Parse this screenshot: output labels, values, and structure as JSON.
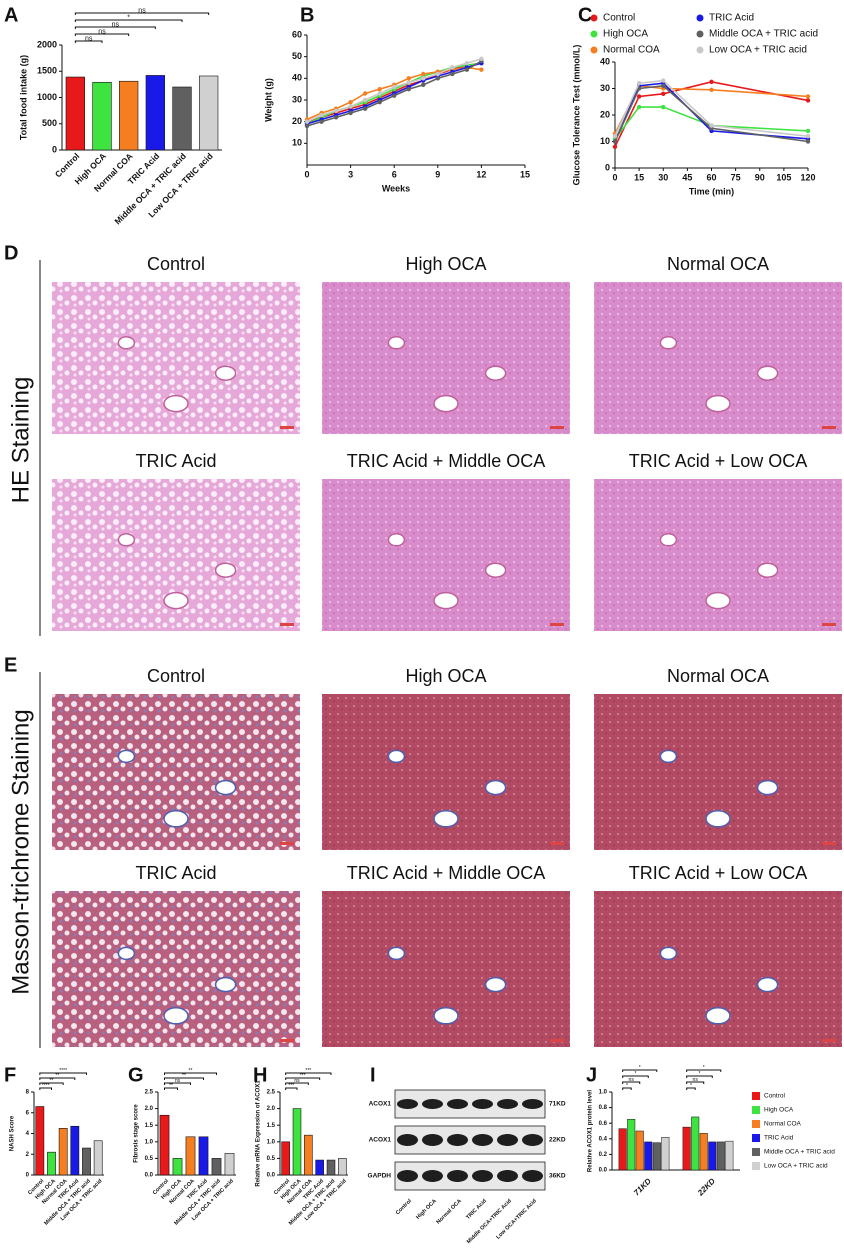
{
  "chart_data": [
    {
      "panel": "A",
      "type": "bar",
      "ylabel": "Total food intake (g)",
      "categories": [
        "Control",
        "High OCA",
        "Normal COA",
        "TRIC Acid",
        "Middle OCA + TRIC acid",
        "Low OCA + TRIC acid"
      ],
      "values": [
        1390,
        1290,
        1310,
        1420,
        1200,
        1410
      ],
      "colors": [
        "#e8191b",
        "#3fe33f",
        "#f57f20",
        "#1a1ae8",
        "#606060",
        "#d0d0d0"
      ],
      "ylim": [
        0,
        2000
      ],
      "yticks": [
        0,
        500,
        1000,
        1500,
        2000
      ],
      "annotations": [
        "ns",
        "ns",
        "ns",
        "*",
        "ns"
      ]
    },
    {
      "panel": "B",
      "type": "line",
      "xlabel": "Weeks",
      "ylabel": "Weight (g)",
      "x": [
        0,
        1,
        2,
        3,
        4,
        5,
        6,
        7,
        8,
        9,
        10,
        11,
        12
      ],
      "xlim": [
        0,
        15
      ],
      "xticks": [
        0,
        3,
        6,
        9,
        12,
        15
      ],
      "ylim": [
        0,
        60
      ],
      "yticks": [
        10,
        20,
        30,
        40,
        50,
        60
      ],
      "series": [
        {
          "color": "#e8191b",
          "values": [
            20,
            22,
            24,
            26,
            28,
            31,
            34,
            37,
            39,
            42,
            44,
            46,
            47
          ]
        },
        {
          "color": "#3fe33f",
          "values": [
            19,
            22,
            25,
            27,
            29,
            32,
            35,
            38,
            41,
            43,
            45,
            46,
            47
          ]
        },
        {
          "color": "#f57f20",
          "values": [
            21,
            24,
            26,
            29,
            33,
            35,
            37,
            40,
            42,
            43,
            44,
            45,
            44
          ]
        },
        {
          "color": "#1a1ae8",
          "values": [
            19,
            21,
            23,
            25,
            27,
            30,
            33,
            36,
            39,
            41,
            43,
            45,
            47
          ]
        },
        {
          "color": "#606060",
          "values": [
            18,
            20,
            22,
            24,
            26,
            29,
            32,
            35,
            37,
            40,
            42,
            44,
            48
          ]
        },
        {
          "color": "#c8c8c8",
          "values": [
            20,
            23,
            25,
            27,
            30,
            33,
            36,
            38,
            40,
            42,
            45,
            47,
            49
          ]
        }
      ]
    },
    {
      "panel": "C",
      "type": "line",
      "xlabel": "Time (min)",
      "ylabel": "Glucose Tolerance Test (mmol/L)",
      "x": [
        0,
        15,
        30,
        60,
        120
      ],
      "xlim": [
        0,
        120
      ],
      "xticks": [
        0,
        15,
        30,
        45,
        60,
        75,
        90,
        105,
        120
      ],
      "ylim": [
        0,
        40
      ],
      "yticks": [
        0,
        10,
        20,
        30,
        40
      ],
      "series": [
        {
          "name": "Control",
          "color": "#e8191b",
          "values": [
            8,
            27,
            28,
            32.5,
            25.5
          ]
        },
        {
          "name": "High OCA",
          "color": "#3fe33f",
          "values": [
            11,
            23,
            23,
            16,
            14
          ]
        },
        {
          "name": "Normal COA",
          "color": "#f57f20",
          "values": [
            13,
            31,
            30,
            29.5,
            27
          ]
        },
        {
          "name": "TRIC Acid",
          "color": "#1a1ae8",
          "values": [
            10,
            31,
            32,
            14,
            11
          ]
        },
        {
          "name": "Middle OCA + TRIC acid",
          "color": "#606060",
          "values": [
            10,
            30,
            31,
            15,
            10
          ]
        },
        {
          "name": "Low OCA + TRIC acid",
          "color": "#c8c8c8",
          "values": [
            12,
            32,
            33,
            16,
            12
          ]
        }
      ]
    },
    {
      "panel": "F",
      "type": "bar",
      "ylabel": "NASH Score",
      "categories": [
        "Control",
        "High OCA",
        "Normal COA",
        "TRIC Acid",
        "Middle OCA + TRIC acid",
        "Low OCA + TRIC acid"
      ],
      "values": [
        6.6,
        2.2,
        4.5,
        4.7,
        2.6,
        3.3
      ],
      "colors": [
        "#e8191b",
        "#3fe33f",
        "#f57f20",
        "#1a1ae8",
        "#606060",
        "#d0d0d0"
      ],
      "ylim": [
        0,
        8
      ],
      "yticks": [
        0,
        2,
        4,
        6,
        8
      ],
      "annotations": [
        "****",
        "**",
        "**",
        "****"
      ]
    },
    {
      "panel": "G",
      "type": "bar",
      "ylabel": "Fibrosis stage score",
      "categories": [
        "Control",
        "High OCA",
        "Normal COA",
        "TRIC Acid",
        "Middle OCA + TRIC acid",
        "Low OCA + TRIC acid"
      ],
      "values": [
        1.8,
        0.5,
        1.15,
        1.15,
        0.5,
        0.65
      ],
      "colors": [
        "#e8191b",
        "#3fe33f",
        "#f57f20",
        "#1a1ae8",
        "#606060",
        "#d0d0d0"
      ],
      "ylim": [
        0,
        2.5
      ],
      "yticks": [
        {
          "value": 0,
          "label": "0.0"
        },
        {
          "value": 0.5,
          "label": "0.5"
        },
        {
          "value": 1,
          "label": "1.0"
        },
        {
          "value": 1.5,
          "label": "1.5"
        },
        {
          "value": 2,
          "label": "2.0"
        },
        {
          "value": 2.5,
          "label": "2.5"
        }
      ],
      "annotations": [
        "**",
        "ns",
        "**",
        "**"
      ]
    },
    {
      "panel": "H",
      "type": "bar",
      "ylabel": "Relative mRNA Expression of ACOX1",
      "categories": [
        "Control",
        "High OCA",
        "Normal COA",
        "TRIC Acid",
        "Middle OCA + TRIC acid",
        "Low OCA + TRIC acid"
      ],
      "values": [
        1.0,
        2.0,
        1.2,
        0.45,
        0.45,
        0.5
      ],
      "colors": [
        "#e8191b",
        "#3fe33f",
        "#f57f20",
        "#1a1ae8",
        "#606060",
        "#d0d0d0"
      ],
      "ylim": [
        0,
        2.5
      ],
      "yticks": [
        {
          "value": 0,
          "label": "0.0"
        },
        {
          "value": 0.5,
          "label": "0.5"
        },
        {
          "value": 1,
          "label": "1.0"
        },
        {
          "value": 1.5,
          "label": "1.5"
        },
        {
          "value": 2,
          "label": "2.0"
        },
        {
          "value": 2.5,
          "label": "2.5"
        }
      ],
      "annotations": [
        "***",
        "ns",
        "***",
        "***"
      ]
    },
    {
      "panel": "J",
      "type": "grouped-bar",
      "ylabel": "Relative ACOX1 protein level",
      "categories": [
        "71KD",
        "22KD"
      ],
      "ylim": [
        0,
        1.0
      ],
      "yticks": [
        {
          "value": 0,
          "label": "0.0"
        },
        {
          "value": 0.2,
          "label": "0.2"
        },
        {
          "value": 0.4,
          "label": "0.4"
        },
        {
          "value": 0.6,
          "label": "0.6"
        },
        {
          "value": 0.8,
          "label": "0.8"
        },
        {
          "value": 1.0,
          "label": "1.0"
        }
      ],
      "series": [
        {
          "name": "Control",
          "color": "#e8191b",
          "values": [
            0.53,
            0.55
          ]
        },
        {
          "name": "High OCA",
          "color": "#3fe33f",
          "values": [
            0.65,
            0.68
          ]
        },
        {
          "name": "Normal COA",
          "color": "#f57f20",
          "values": [
            0.5,
            0.47
          ]
        },
        {
          "name": "TRIC Acid",
          "color": "#1a1ae8",
          "values": [
            0.36,
            0.36
          ]
        },
        {
          "name": "Middle OCA + TRIC acid",
          "color": "#606060",
          "values": [
            0.35,
            0.36
          ]
        },
        {
          "name": "Low OCA + TRIC acid",
          "color": "#d0d0d0",
          "values": [
            0.42,
            0.37
          ]
        }
      ],
      "annotations": [
        [
          "*",
          "ns",
          "*",
          "*"
        ],
        [
          "*",
          "ns",
          "*",
          "*"
        ]
      ]
    }
  ],
  "blot": {
    "panel": "I",
    "rows": [
      {
        "label": "ACOX1",
        "size": "71KD"
      },
      {
        "label": "ACOX1",
        "size": "22KD"
      },
      {
        "label": "GAPDH",
        "size": "36KD"
      }
    ],
    "lanes": [
      "Control",
      "High OCA",
      "Normal OCA",
      "TRIC Acid",
      "Middle OCA+TRIC Acid",
      "Low OCA+TRIC Acid"
    ]
  },
  "staining": [
    {
      "panel": "D",
      "label": "HE Staining",
      "titles": [
        "Control",
        "High OCA",
        "Normal OCA",
        "TRIC Acid",
        "TRIC Acid + Middle OCA",
        "TRIC Acid + Low OCA"
      ]
    },
    {
      "panel": "E",
      "label": "Masson-trichrome Staining",
      "titles": [
        "Control",
        "High OCA",
        "Normal OCA",
        "TRIC Acid",
        "TRIC Acid + Middle OCA",
        "TRIC Acid + Low OCA"
      ]
    }
  ]
}
